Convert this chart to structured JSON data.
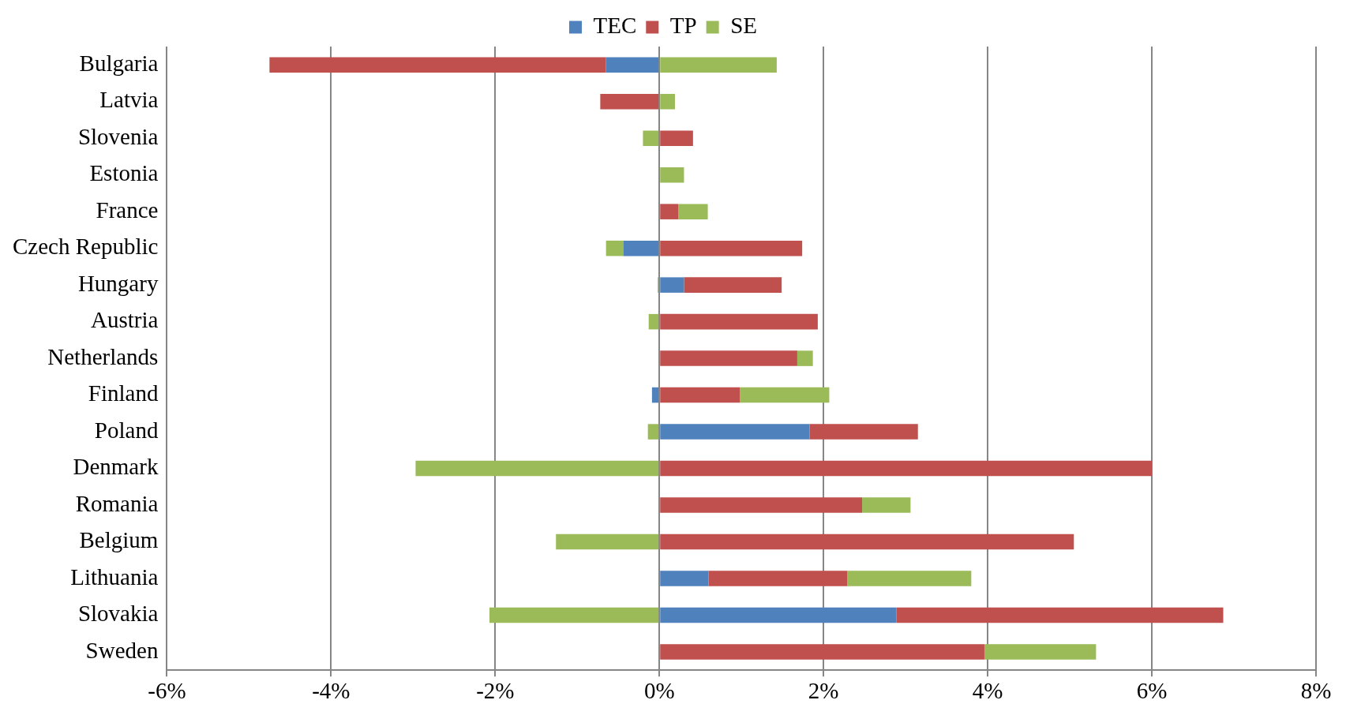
{
  "chart_data": {
    "type": "bar",
    "orientation": "horizontal",
    "stacked": true,
    "categories": [
      "Bulgaria",
      "Latvia",
      "Slovenia",
      "Estonia",
      "France",
      "Czech Republic",
      "Hungary",
      "Austria",
      "Netherlands",
      "Finland",
      "Poland",
      "Denmark",
      "Romania",
      "Belgium",
      "Lithuania",
      "Slovakia",
      "Sweden"
    ],
    "series": [
      {
        "name": "TEC",
        "color": "#4f81bd",
        "values": [
          -0.65,
          0,
          0,
          0,
          0,
          -0.44,
          0.3,
          0,
          0,
          -0.09,
          1.83,
          0,
          0,
          0,
          0.6,
          2.89,
          0
        ]
      },
      {
        "name": "TP",
        "color": "#c0504d",
        "values": [
          -4.1,
          -0.72,
          0.41,
          0,
          0.23,
          1.74,
          1.19,
          1.93,
          1.68,
          0.98,
          1.32,
          6.0,
          2.47,
          5.05,
          1.69,
          3.98,
          3.96
        ]
      },
      {
        "name": "SE",
        "color": "#9bbb59",
        "values": [
          1.43,
          0.19,
          -0.2,
          0.3,
          0.36,
          -0.21,
          -0.02,
          -0.13,
          0.19,
          1.09,
          -0.14,
          -2.97,
          0.59,
          -1.26,
          1.51,
          -2.07,
          1.36
        ]
      }
    ],
    "xlim": [
      -6,
      8
    ],
    "xticks": [
      {
        "value": -6,
        "label": "-6%"
      },
      {
        "value": -4,
        "label": "-4%"
      },
      {
        "value": -2,
        "label": "-2%"
      },
      {
        "value": 0,
        "label": "0%"
      },
      {
        "value": 2,
        "label": "2%"
      },
      {
        "value": 4,
        "label": "4%"
      },
      {
        "value": 6,
        "label": "6%"
      },
      {
        "value": 8,
        "label": "8%"
      }
    ],
    "grid": "x",
    "legend": "top"
  }
}
